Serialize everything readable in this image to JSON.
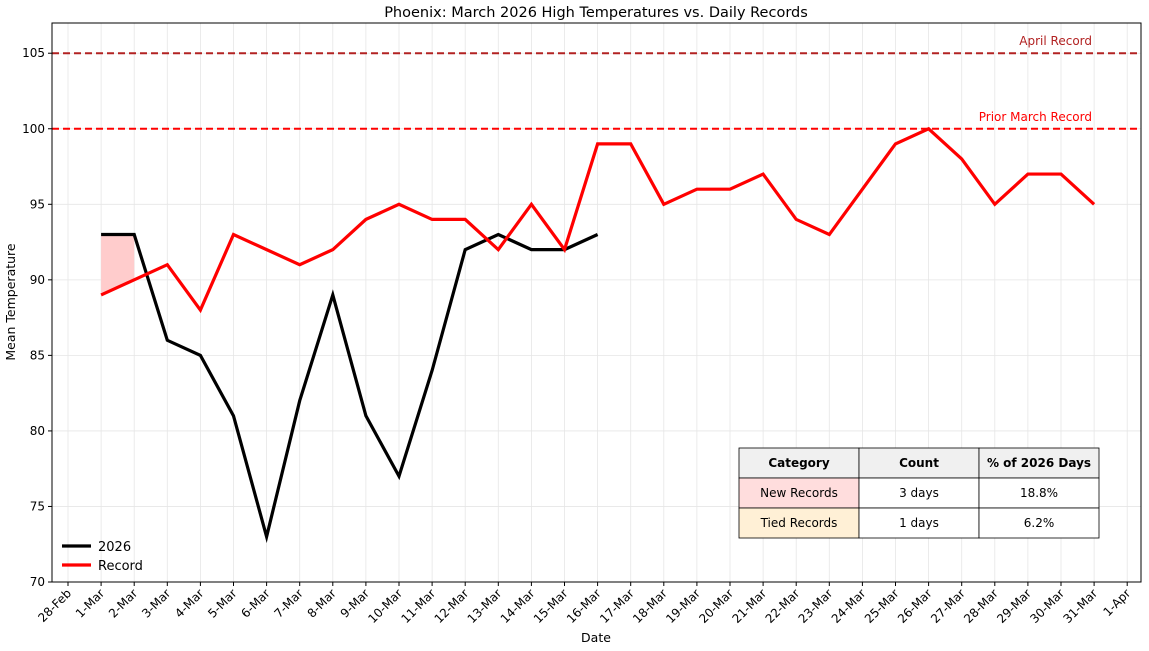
{
  "chart_data": {
    "type": "line",
    "title": "Phoenix: March 2026 High Temperatures vs. Daily Records",
    "xlabel": "Date",
    "ylabel": "Mean Temperature",
    "ylim": [
      70,
      107
    ],
    "yticks": [
      70,
      75,
      80,
      85,
      90,
      95,
      100,
      105
    ],
    "xticks": [
      "28-Feb",
      "1-Mar",
      "2-Mar",
      "3-Mar",
      "4-Mar",
      "5-Mar",
      "6-Mar",
      "7-Mar",
      "8-Mar",
      "9-Mar",
      "10-Mar",
      "11-Mar",
      "12-Mar",
      "13-Mar",
      "14-Mar",
      "15-Mar",
      "16-Mar",
      "17-Mar",
      "18-Mar",
      "19-Mar",
      "20-Mar",
      "21-Mar",
      "22-Mar",
      "23-Mar",
      "24-Mar",
      "25-Mar",
      "26-Mar",
      "27-Mar",
      "28-Mar",
      "29-Mar",
      "30-Mar",
      "31-Mar",
      "1-Apr"
    ],
    "grid": true,
    "legend_position": "bottom-left",
    "series": [
      {
        "name": "2026",
        "color": "#000000",
        "x": [
          "2026-03-01",
          "2026-03-02",
          "2026-03-03",
          "2026-03-04",
          "2026-03-05",
          "2026-03-06",
          "2026-03-07",
          "2026-03-08",
          "2026-03-09",
          "2026-03-10",
          "2026-03-11",
          "2026-03-12",
          "2026-03-13",
          "2026-03-14",
          "2026-03-15",
          "2026-03-16"
        ],
        "values": [
          93,
          93,
          86,
          85,
          81,
          73,
          82,
          89,
          81,
          77,
          84,
          92,
          93,
          92,
          92,
          93
        ]
      },
      {
        "name": "Record",
        "color": "#ff0000",
        "x": [
          "2026-03-01",
          "2026-03-02",
          "2026-03-03",
          "2026-03-04",
          "2026-03-05",
          "2026-03-06",
          "2026-03-07",
          "2026-03-08",
          "2026-03-09",
          "2026-03-10",
          "2026-03-11",
          "2026-03-12",
          "2026-03-13",
          "2026-03-14",
          "2026-03-15",
          "2026-03-16",
          "2026-03-17",
          "2026-03-18",
          "2026-03-19",
          "2026-03-20",
          "2026-03-21",
          "2026-03-22",
          "2026-03-23",
          "2026-03-24",
          "2026-03-25",
          "2026-03-26",
          "2026-03-27",
          "2026-03-28",
          "2026-03-29",
          "2026-03-30",
          "2026-03-31"
        ],
        "values": [
          89,
          90,
          91,
          88,
          93,
          92,
          91,
          92,
          94,
          95,
          94,
          94,
          92,
          95,
          92,
          99,
          99,
          95,
          96,
          96,
          97,
          94,
          93,
          96,
          99,
          100,
          98,
          95,
          97,
          97,
          95
        ]
      }
    ],
    "reference_lines": [
      {
        "value": 105,
        "label": "April Record",
        "color": "#b22222"
      },
      {
        "value": 100,
        "label": "Prior March Record",
        "color": "#ff0000"
      }
    ],
    "fill_between": {
      "x": [
        "2026-03-01",
        "2026-03-02"
      ],
      "upper": [
        93,
        93
      ],
      "lower": [
        89,
        90
      ],
      "color": "#ffcccc"
    },
    "table": {
      "headers": [
        "Category",
        "Count",
        "% of 2026 Days"
      ],
      "rows": [
        {
          "category": "New Records",
          "count": "3 days",
          "percent": "18.8%",
          "color": "#ffdddd"
        },
        {
          "category": "Tied Records",
          "count": "1 days",
          "percent": "6.2%",
          "color": "#fff0d6"
        }
      ],
      "header_color": "#f0f0f0"
    }
  }
}
